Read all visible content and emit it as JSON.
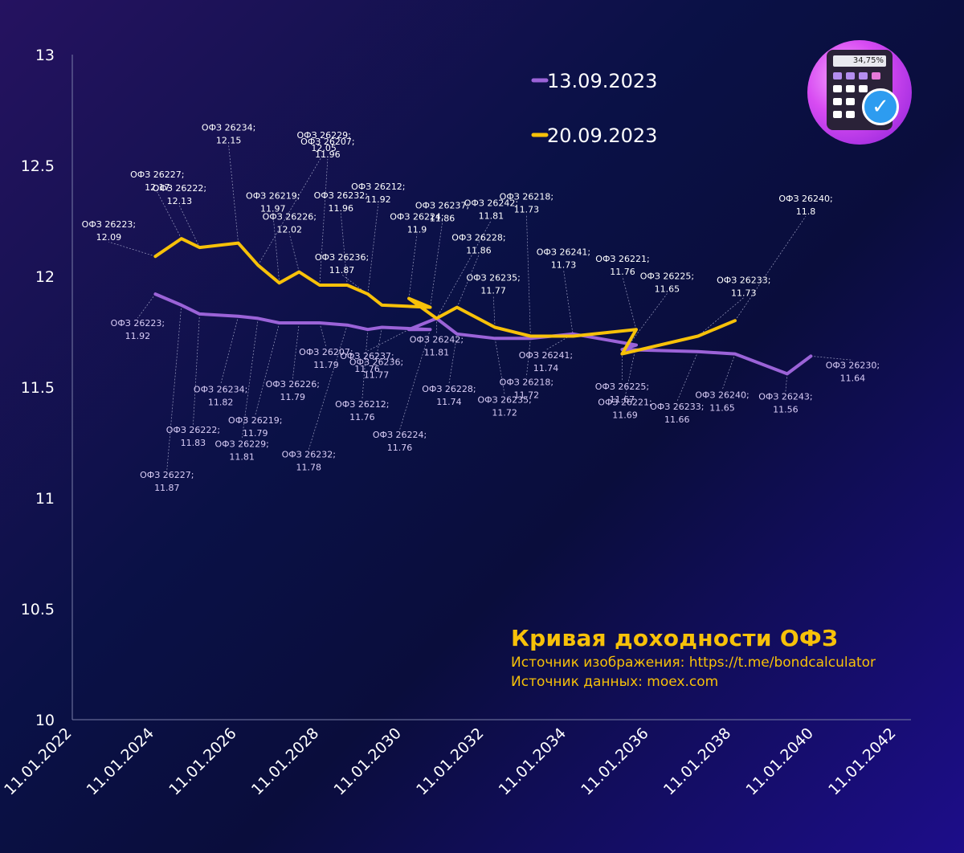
{
  "colors": {
    "series1": "#9b63d8",
    "series2": "#f7c109",
    "axis": "#7a7ea8",
    "leader": "#9a9cc0"
  },
  "chart_data": {
    "type": "line",
    "title": "Кривая доходности ОФЗ",
    "xlabel": "",
    "ylabel": "",
    "ylim": [
      10,
      13
    ],
    "y_ticks": [
      "10",
      "10.5",
      "11",
      "11.5",
      "12",
      "12.5",
      "13"
    ],
    "x_ticks": [
      "11.01.2022",
      "11.01.2024",
      "11.01.2026",
      "11.01.2028",
      "11.01.2030",
      "11.01.2032",
      "11.01.2034",
      "11.01.2036",
      "11.01.2038",
      "11.01.2040",
      "11.01.2042"
    ],
    "series": [
      {
        "name": "13.09.2023",
        "color": "#9b63d8",
        "points": [
          {
            "x": "2024-01-17",
            "y": 11.92,
            "label": "ОФЗ 26223;\n11.92"
          },
          {
            "x": "2024-09-04",
            "y": 11.87,
            "label": "ОФЗ 26227;\n11.87"
          },
          {
            "x": "2025-02-12",
            "y": 11.83,
            "label": "ОФЗ 26222;\n11.83"
          },
          {
            "x": "2026-01-21",
            "y": 11.82,
            "label": "ОФЗ 26234;\n11.82"
          },
          {
            "x": "2026-07-15",
            "y": 11.81,
            "label": "ОФЗ 26229;\n11.81"
          },
          {
            "x": "2027-01-20",
            "y": 11.79,
            "label": "ОФЗ 26219;\n11.79"
          },
          {
            "x": "2027-07-14",
            "y": 11.79,
            "label": "ОФЗ 26226;\n11.79"
          },
          {
            "x": "2028-01-12",
            "y": 11.79,
            "label": "ОФЗ 26207;\n11.79"
          },
          {
            "x": "2028-09-13",
            "y": 11.78,
            "label": "ОФЗ 26232;\n11.78"
          },
          {
            "x": "2029-03-14",
            "y": 11.76,
            "label": "ОФЗ 26212;\n11.76"
          },
          {
            "x": "2029-07-18",
            "y": 11.77,
            "label": "ОФЗ 26236;\n11.77"
          },
          {
            "x": "2030-09-18",
            "y": 11.76,
            "label": "ОФЗ 26224;\n11.76"
          },
          {
            "x": "2030-03-13",
            "y": 11.76,
            "label": "ОФЗ 26237;\n11.76"
          },
          {
            "x": "2030-11-13",
            "y": 11.81,
            "label": "ОФЗ 26242;\n11.81"
          },
          {
            "x": "2031-05-14",
            "y": 11.74,
            "label": "ОФЗ 26228;\n11.74"
          },
          {
            "x": "2032-04-14",
            "y": 11.72,
            "label": "ОФЗ 26235;\n11.72"
          },
          {
            "x": "2033-02-23",
            "y": 11.72,
            "label": "ОФЗ 26218;\n11.72"
          },
          {
            "x": "2034-03-08",
            "y": 11.74,
            "label": "ОФЗ 26241;\n11.74"
          },
          {
            "x": "2035-09-18",
            "y": 11.69,
            "label": "ОФЗ 26221;\n11.69"
          },
          {
            "x": "2035-05-16",
            "y": 11.67,
            "label": "ОФЗ 26225;\n11.67"
          },
          {
            "x": "2037-03-18",
            "y": 11.66,
            "label": "ОФЗ 26233;\n11.66"
          },
          {
            "x": "2038-02-10",
            "y": 11.65,
            "label": "ОФЗ 26240;\n11.65"
          },
          {
            "x": "2039-05-18",
            "y": 11.56,
            "label": "ОФЗ 26243;\n11.56"
          },
          {
            "x": "2039-12-14",
            "y": 11.64,
            "label": "ОФЗ 26230;\n11.64"
          }
        ]
      },
      {
        "name": "20.09.2023",
        "color": "#f7c109",
        "points": [
          {
            "x": "2024-01-17",
            "y": 12.09,
            "label": "ОФЗ 26223;\n12.09"
          },
          {
            "x": "2024-09-04",
            "y": 12.17,
            "label": "ОФЗ 26227;\n12.17"
          },
          {
            "x": "2025-02-12",
            "y": 12.13,
            "label": "ОФЗ 26222;\n12.13"
          },
          {
            "x": "2026-01-21",
            "y": 12.15,
            "label": "ОФЗ 26234;\n12.15"
          },
          {
            "x": "2026-07-15",
            "y": 12.05,
            "label": "ОФЗ 26229;\n12.05"
          },
          {
            "x": "2027-01-20",
            "y": 11.97,
            "label": "ОФЗ 26219;\n11.97"
          },
          {
            "x": "2027-07-14",
            "y": 12.02,
            "label": "ОФЗ 26226;\n12.02"
          },
          {
            "x": "2028-01-12",
            "y": 11.96,
            "label": "ОФЗ 26207;\n11.96"
          },
          {
            "x": "2028-09-13",
            "y": 11.96,
            "label": "ОФЗ 26232;\n11.96"
          },
          {
            "x": "2029-03-14",
            "y": 11.92,
            "label": "ОФЗ 26212;\n11.92"
          },
          {
            "x": "2029-07-18",
            "y": 11.87,
            "label": "ОФЗ 26236;\n11.87"
          },
          {
            "x": "2030-09-18",
            "y": 11.86,
            "label": "ОФЗ 26237;\n11.86"
          },
          {
            "x": "2030-03-13",
            "y": 11.9,
            "label": "ОФЗ 26224;\n11.9"
          },
          {
            "x": "2030-11-13",
            "y": 11.81,
            "label": "ОФЗ 26242;\n11.81"
          },
          {
            "x": "2031-05-14",
            "y": 11.86,
            "label": "ОФЗ 26228;\n11.86"
          },
          {
            "x": "2032-04-14",
            "y": 11.77,
            "label": "ОФЗ 26235;\n11.77"
          },
          {
            "x": "2033-02-23",
            "y": 11.73,
            "label": "ОФЗ 26218;\n11.73"
          },
          {
            "x": "2034-03-08",
            "y": 11.73,
            "label": "ОФЗ 26241;\n11.73"
          },
          {
            "x": "2035-09-18",
            "y": 11.76,
            "label": "ОФЗ 26221;\n11.76"
          },
          {
            "x": "2035-05-16",
            "y": 11.65,
            "label": "ОФЗ 26225;\n11.65"
          },
          {
            "x": "2037-03-18",
            "y": 11.73,
            "label": "ОФЗ 26233;\n11.73"
          },
          {
            "x": "2038-02-10",
            "y": 11.8,
            "label": "ОФЗ 26240;\n11.8"
          }
        ]
      }
    ]
  },
  "caption": {
    "title": "Кривая доходности ОФЗ",
    "source_image": "Источник изображения: https://t.me/bondcalculator",
    "source_data": "Источник данных: moex.com"
  },
  "logo": {
    "screen_text": "34,75%",
    "icon": "calculator-check-icon"
  }
}
